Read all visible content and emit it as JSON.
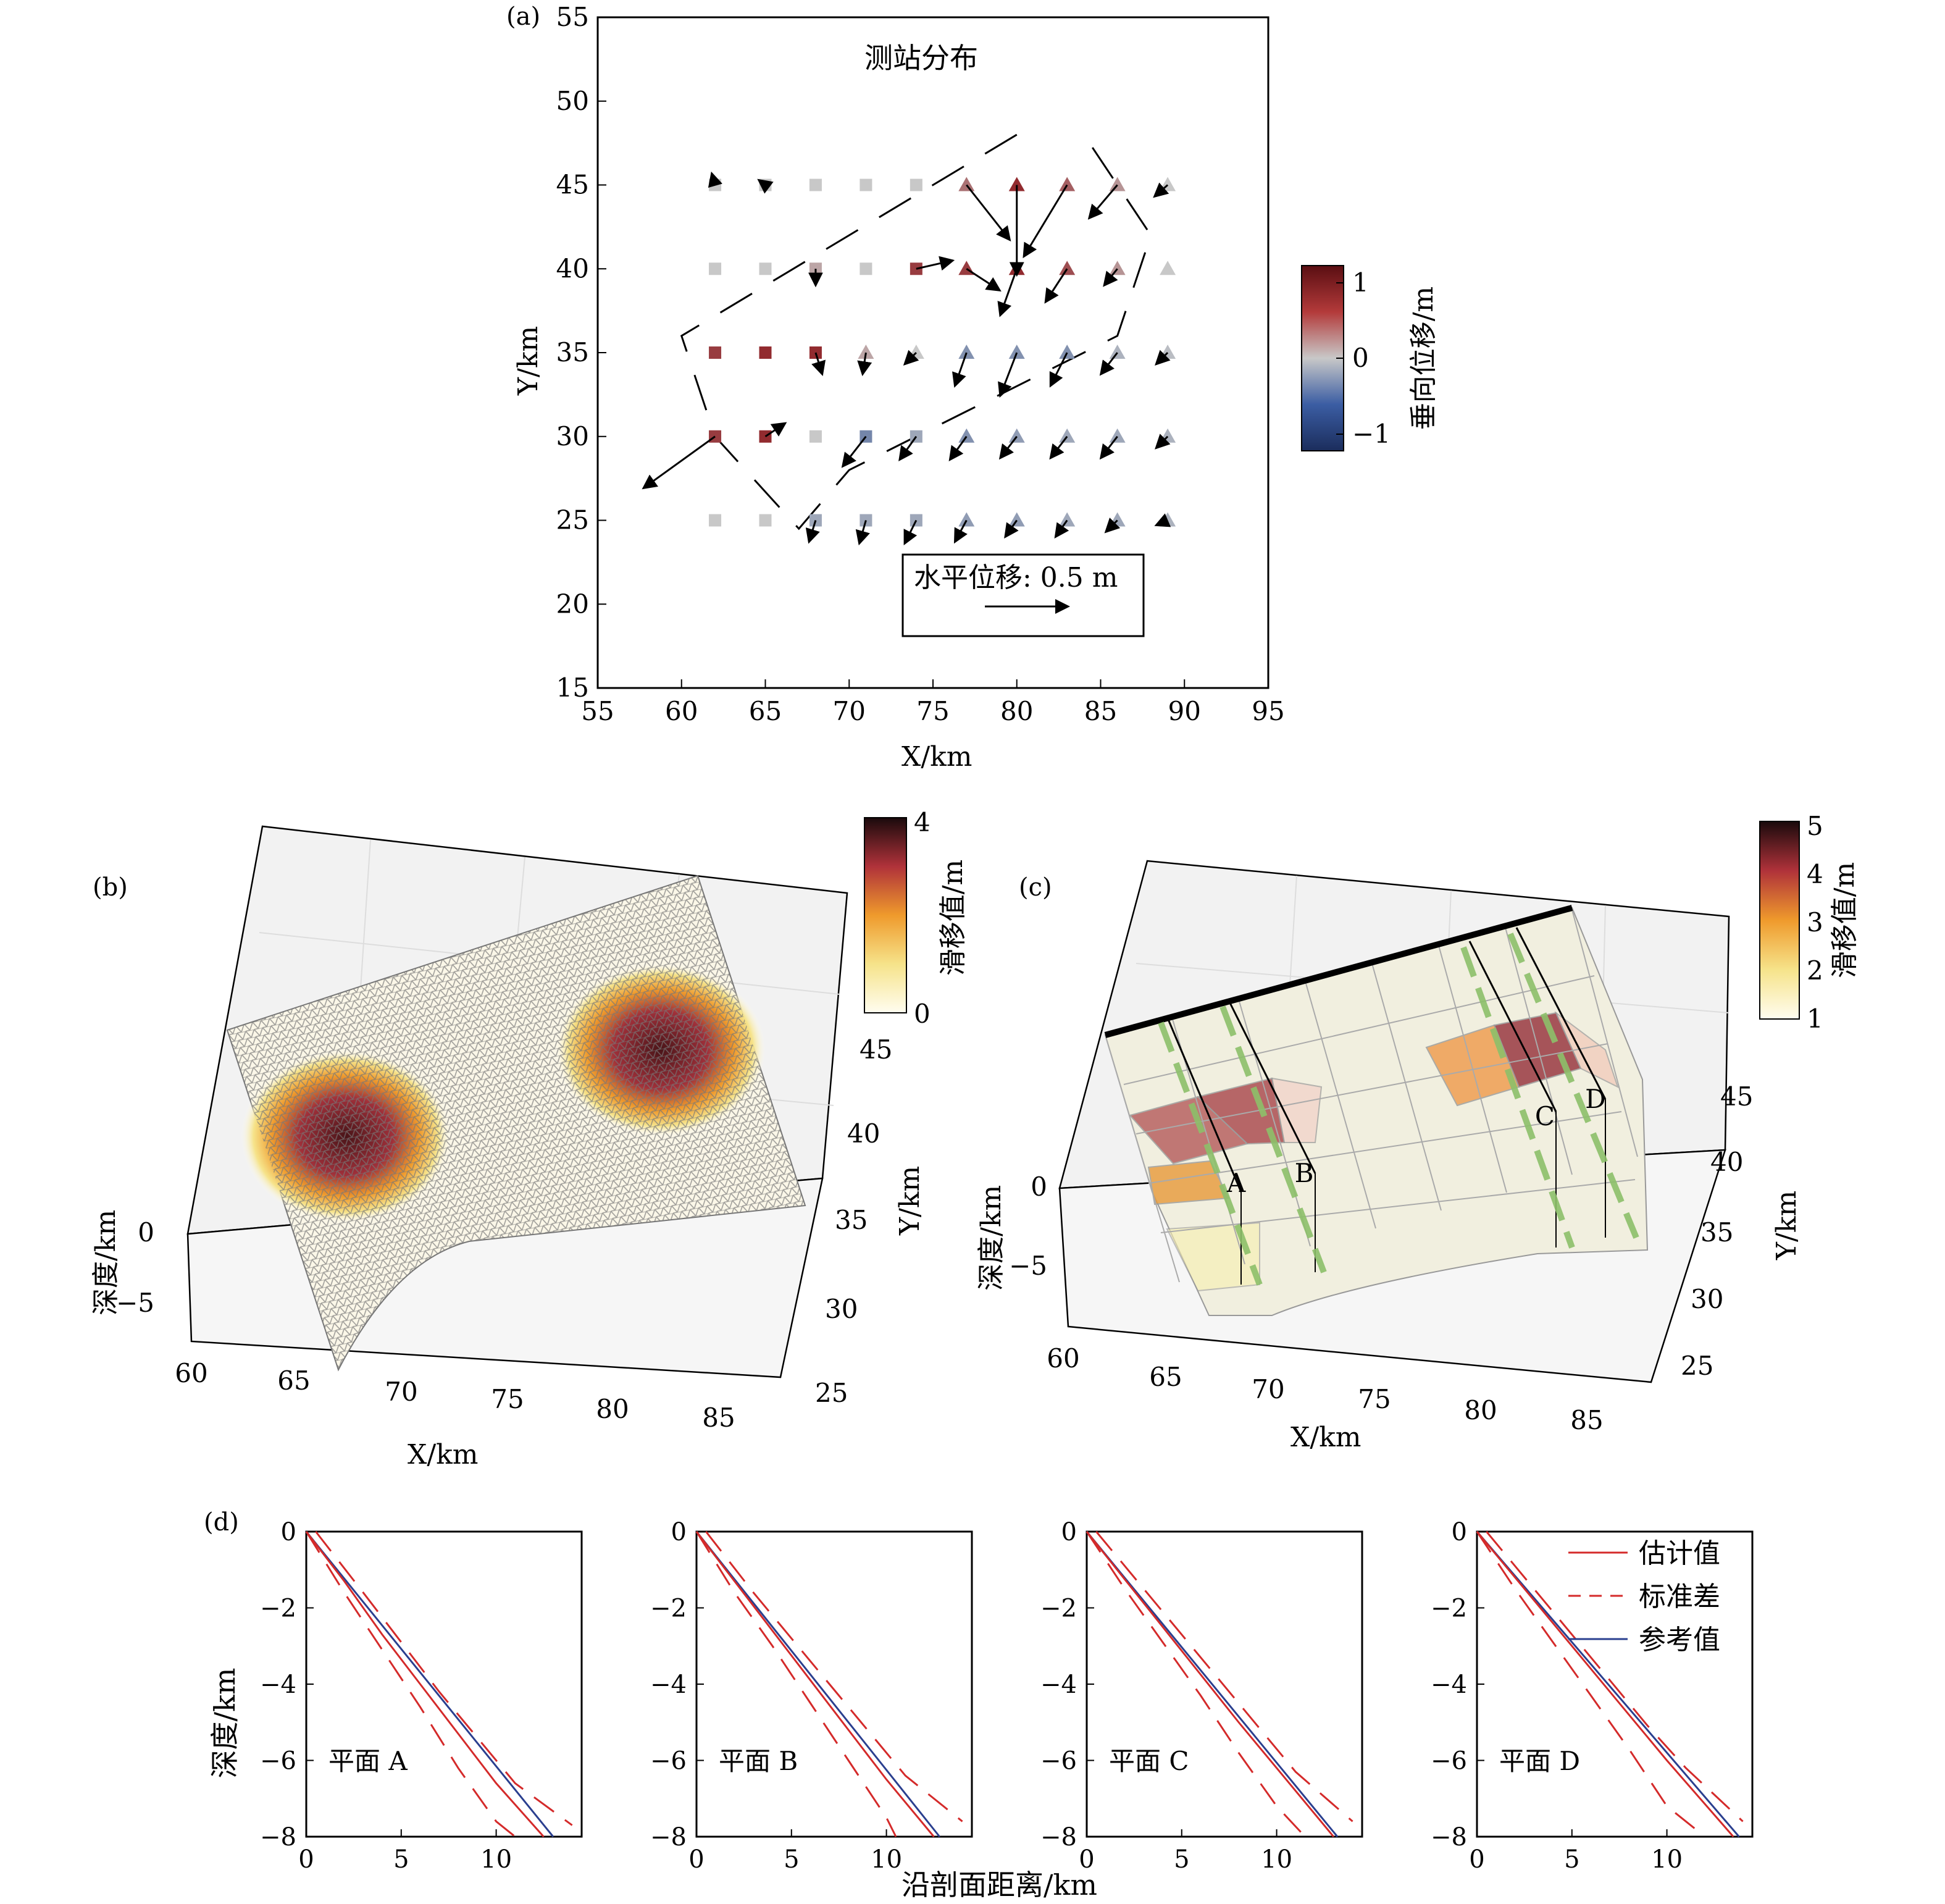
{
  "panels": {
    "a": {
      "tag": "(a)",
      "title": "测站分布",
      "xlabel": "X/km",
      "ylabel": "Y/km",
      "scale_label": "水平位移: 0.5 m",
      "colorbar": {
        "label": "垂向位移/m",
        "ticks": [
          "1",
          "0",
          "−1"
        ],
        "range": [
          -1.2,
          1.2
        ]
      }
    },
    "b": {
      "tag": "(b)",
      "xlabel": "X/km",
      "ylabel": "Y/km",
      "zlabel": "深度/km",
      "xticks": [
        "60",
        "65",
        "70",
        "75",
        "80",
        "85"
      ],
      "yticks": [
        "25",
        "30",
        "35",
        "40",
        "45"
      ],
      "zticks": [
        "0",
        "−5"
      ],
      "colorbar": {
        "label": "滑移值/m",
        "ticks": [
          "4",
          "0"
        ],
        "range": [
          0,
          4
        ]
      }
    },
    "c": {
      "tag": "(c)",
      "xlabel": "X/km",
      "ylabel": "Y/km",
      "zlabel": "深度/km",
      "xticks": [
        "60",
        "65",
        "70",
        "75",
        "80",
        "85"
      ],
      "yticks": [
        "25",
        "30",
        "35",
        "40",
        "45"
      ],
      "zticks": [
        "0",
        "−5"
      ],
      "plane_labels": [
        "A",
        "B",
        "C",
        "D"
      ],
      "colorbar": {
        "label": "滑移值/m",
        "ticks": [
          "5",
          "4",
          "3",
          "2",
          "1"
        ],
        "range": [
          1,
          5
        ]
      }
    },
    "d": {
      "tag": "(d)",
      "xlabel": "沿剖面距离/km",
      "ylabel": "深度/km",
      "legend": [
        "估计值",
        "标准差",
        "参考值"
      ]
    }
  },
  "colors": {
    "estimate": "#d42a2a",
    "reference": "#2a3f8f",
    "axis": "#000000"
  },
  "chart_data": [
    {
      "type": "scatter",
      "panel": "a",
      "title": "测站分布",
      "xlabel": "X/km",
      "ylabel": "Y/km",
      "xlim": [
        55,
        95
      ],
      "ylim": [
        15,
        55
      ],
      "xticks": [
        55,
        60,
        65,
        70,
        75,
        80,
        85,
        90,
        95
      ],
      "yticks": [
        15,
        20,
        25,
        30,
        35,
        40,
        45,
        50,
        55
      ],
      "scale_vector_m": 0.5,
      "fault_trace": [
        [
          80,
          48
        ],
        [
          60,
          36
        ],
        [
          62,
          30
        ],
        [
          67,
          24.5
        ],
        [
          70,
          28
        ],
        [
          77,
          31.5
        ],
        [
          86,
          36
        ],
        [
          88,
          42
        ],
        [
          84,
          48
        ]
      ],
      "stations": [
        {
          "x": 62,
          "y": 45,
          "type": "square",
          "u": -0.02,
          "v": 0.07,
          "up": 0.0
        },
        {
          "x": 65,
          "y": 45,
          "type": "square",
          "u": -0.04,
          "v": 0.03,
          "up": 0.0
        },
        {
          "x": 68,
          "y": 45,
          "type": "square",
          "u": 0.0,
          "v": 0.0,
          "up": 0.0
        },
        {
          "x": 71,
          "y": 45,
          "type": "square",
          "u": 0.0,
          "v": 0.0,
          "up": 0.0
        },
        {
          "x": 74,
          "y": 45,
          "type": "square",
          "u": 0.0,
          "v": 0.0,
          "up": 0.0
        },
        {
          "x": 77,
          "y": 45,
          "type": "triangle",
          "u": 0.26,
          "v": -0.33,
          "up": 0.5
        },
        {
          "x": 80,
          "y": 45,
          "type": "triangle",
          "u": 0.0,
          "v": -0.54,
          "up": 0.9
        },
        {
          "x": 83,
          "y": 45,
          "type": "triangle",
          "u": -0.26,
          "v": -0.43,
          "up": 0.6
        },
        {
          "x": 86,
          "y": 45,
          "type": "triangle",
          "u": -0.17,
          "v": -0.2,
          "up": 0.3
        },
        {
          "x": 89,
          "y": 45,
          "type": "triangle",
          "u": -0.08,
          "v": -0.07,
          "up": 0.0
        },
        {
          "x": 62,
          "y": 40,
          "type": "square",
          "u": 0.0,
          "v": 0.0,
          "up": 0.0
        },
        {
          "x": 65,
          "y": 40,
          "type": "square",
          "u": 0.0,
          "v": 0.0,
          "up": 0.0
        },
        {
          "x": 68,
          "y": 40,
          "type": "square",
          "u": 0.0,
          "v": -0.1,
          "up": 0.2
        },
        {
          "x": 71,
          "y": 40,
          "type": "square",
          "u": 0.0,
          "v": 0.0,
          "up": 0.0
        },
        {
          "x": 74,
          "y": 40,
          "type": "square",
          "u": 0.22,
          "v": 0.05,
          "up": 0.8
        },
        {
          "x": 77,
          "y": 40,
          "type": "triangle",
          "u": 0.2,
          "v": -0.13,
          "up": 0.8
        },
        {
          "x": 80,
          "y": 40,
          "type": "triangle",
          "u": -0.1,
          "v": -0.28,
          "up": 0.9
        },
        {
          "x": 83,
          "y": 40,
          "type": "triangle",
          "u": -0.13,
          "v": -0.2,
          "up": 0.7
        },
        {
          "x": 86,
          "y": 40,
          "type": "triangle",
          "u": -0.08,
          "v": -0.1,
          "up": 0.3
        },
        {
          "x": 89,
          "y": 40,
          "type": "triangle",
          "u": 0.0,
          "v": 0.0,
          "up": 0.0
        },
        {
          "x": 62,
          "y": 35,
          "type": "square",
          "u": 0.0,
          "v": 0.0,
          "up": 0.8
        },
        {
          "x": 65,
          "y": 35,
          "type": "square",
          "u": 0.0,
          "v": 0.0,
          "up": 0.9
        },
        {
          "x": 68,
          "y": 35,
          "type": "square",
          "u": 0.04,
          "v": -0.13,
          "up": 0.9
        },
        {
          "x": 71,
          "y": 35,
          "type": "triangle",
          "u": -0.02,
          "v": -0.13,
          "up": 0.2
        },
        {
          "x": 74,
          "y": 35,
          "type": "triangle",
          "u": -0.07,
          "v": -0.07,
          "up": 0.0
        },
        {
          "x": 77,
          "y": 35,
          "type": "triangle",
          "u": -0.07,
          "v": -0.2,
          "up": -0.5
        },
        {
          "x": 80,
          "y": 35,
          "type": "triangle",
          "u": -0.1,
          "v": -0.26,
          "up": -0.5
        },
        {
          "x": 83,
          "y": 35,
          "type": "triangle",
          "u": -0.1,
          "v": -0.2,
          "up": -0.5
        },
        {
          "x": 86,
          "y": 35,
          "type": "triangle",
          "u": -0.1,
          "v": -0.13,
          "up": -0.2
        },
        {
          "x": 89,
          "y": 35,
          "type": "triangle",
          "u": -0.07,
          "v": -0.07,
          "up": -0.1
        },
        {
          "x": 62,
          "y": 30,
          "type": "square",
          "u": -0.43,
          "v": -0.31,
          "up": 0.8
        },
        {
          "x": 65,
          "y": 30,
          "type": "square",
          "u": 0.12,
          "v": 0.08,
          "up": 0.9
        },
        {
          "x": 68,
          "y": 30,
          "type": "square",
          "u": 0.0,
          "v": 0.0,
          "up": 0.0
        },
        {
          "x": 71,
          "y": 30,
          "type": "square",
          "u": -0.14,
          "v": -0.18,
          "up": -0.6
        },
        {
          "x": 74,
          "y": 30,
          "type": "square",
          "u": -0.1,
          "v": -0.14,
          "up": -0.3
        },
        {
          "x": 77,
          "y": 30,
          "type": "triangle",
          "u": -0.1,
          "v": -0.14,
          "up": -0.5
        },
        {
          "x": 80,
          "y": 30,
          "type": "triangle",
          "u": -0.1,
          "v": -0.13,
          "up": -0.4
        },
        {
          "x": 83,
          "y": 30,
          "type": "triangle",
          "u": -0.1,
          "v": -0.13,
          "up": -0.3
        },
        {
          "x": 86,
          "y": 30,
          "type": "triangle",
          "u": -0.1,
          "v": -0.13,
          "up": -0.3
        },
        {
          "x": 89,
          "y": 30,
          "type": "triangle",
          "u": -0.07,
          "v": -0.07,
          "up": -0.2
        },
        {
          "x": 62,
          "y": 25,
          "type": "square",
          "u": 0.0,
          "v": 0.0,
          "up": 0.0
        },
        {
          "x": 65,
          "y": 25,
          "type": "square",
          "u": 0.0,
          "v": 0.0,
          "up": 0.0
        },
        {
          "x": 68,
          "y": 25,
          "type": "square",
          "u": -0.04,
          "v": -0.13,
          "up": -0.3
        },
        {
          "x": 71,
          "y": 25,
          "type": "square",
          "u": -0.04,
          "v": -0.14,
          "up": -0.3
        },
        {
          "x": 74,
          "y": 25,
          "type": "square",
          "u": -0.07,
          "v": -0.14,
          "up": -0.3
        },
        {
          "x": 77,
          "y": 25,
          "type": "triangle",
          "u": -0.07,
          "v": -0.13,
          "up": -0.4
        },
        {
          "x": 80,
          "y": 25,
          "type": "triangle",
          "u": -0.07,
          "v": -0.1,
          "up": -0.4
        },
        {
          "x": 83,
          "y": 25,
          "type": "triangle",
          "u": -0.07,
          "v": -0.1,
          "up": -0.3
        },
        {
          "x": 86,
          "y": 25,
          "type": "triangle",
          "u": -0.07,
          "v": -0.07,
          "up": -0.3
        },
        {
          "x": 89,
          "y": 25,
          "type": "triangle",
          "u": -0.07,
          "v": -0.03,
          "up": -0.2
        }
      ]
    },
    {
      "type": "heatmap",
      "panel": "b",
      "description_units": "3D fault slip distribution",
      "xlabel": "X/km",
      "ylabel": "Y/km",
      "zlabel": "深度/km",
      "xlim": [
        60,
        87
      ],
      "ylim": [
        24,
        48
      ],
      "zlim": [
        -8,
        0
      ],
      "colorbar_range": [
        0,
        4
      ],
      "slip_patches": [
        {
          "center_x": 66,
          "center_y": 34,
          "peak_slip": 4
        },
        {
          "center_x": 80,
          "center_y": 42,
          "peak_slip": 4
        }
      ]
    },
    {
      "type": "heatmap",
      "panel": "c",
      "xlabel": "X/km",
      "ylabel": "Y/km",
      "zlabel": "深度/km",
      "xlim": [
        60,
        87
      ],
      "ylim": [
        24,
        48
      ],
      "zlim": [
        -8,
        0
      ],
      "colorbar_range": [
        1,
        5
      ],
      "profiles": [
        "A",
        "B",
        "C",
        "D"
      ]
    },
    {
      "type": "line",
      "panel": "d",
      "xlabel": "沿剖面距离/km",
      "ylabel": "深度/km",
      "xlim": [
        0,
        14.5
      ],
      "ylim": [
        -8,
        0
      ],
      "xticks": [
        0,
        5,
        10
      ],
      "yticks": [
        0,
        -2,
        -4,
        -6,
        -8
      ],
      "subplots": [
        {
          "label": "平面 A",
          "estimate": [
            [
              0,
              0
            ],
            [
              2,
              -1.3
            ],
            [
              4,
              -2.7
            ],
            [
              6,
              -4.0
            ],
            [
              8,
              -5.3
            ],
            [
              10,
              -6.6
            ],
            [
              12.5,
              -8
            ]
          ],
          "std_upper": [
            [
              0.5,
              0
            ],
            [
              3,
              -1.6
            ],
            [
              5,
              -2.9
            ],
            [
              7,
              -4.2
            ],
            [
              9,
              -5.4
            ],
            [
              11,
              -6.6
            ],
            [
              14,
              -7.7
            ]
          ],
          "std_lower": [
            [
              0,
              0
            ],
            [
              2,
              -1.6
            ],
            [
              4,
              -3.1
            ],
            [
              6,
              -4.6
            ],
            [
              8,
              -6.2
            ],
            [
              10,
              -7.6
            ],
            [
              11,
              -8
            ]
          ],
          "reference": [
            [
              0,
              0
            ],
            [
              13,
              -8
            ]
          ]
        },
        {
          "label": "平面 B",
          "estimate": [
            [
              0,
              0
            ],
            [
              2,
              -1.3
            ],
            [
              4,
              -2.6
            ],
            [
              6,
              -3.9
            ],
            [
              8,
              -5.2
            ],
            [
              10,
              -6.5
            ],
            [
              12.5,
              -8
            ]
          ],
          "std_upper": [
            [
              0.5,
              0
            ],
            [
              3,
              -1.6
            ],
            [
              5,
              -2.8
            ],
            [
              7,
              -4.0
            ],
            [
              9,
              -5.2
            ],
            [
              11,
              -6.4
            ],
            [
              14,
              -7.6
            ]
          ],
          "std_lower": [
            [
              0,
              0
            ],
            [
              2,
              -1.6
            ],
            [
              4,
              -3.0
            ],
            [
              6,
              -4.5
            ],
            [
              8,
              -6.0
            ],
            [
              10,
              -7.5
            ],
            [
              10.5,
              -8
            ]
          ],
          "reference": [
            [
              0,
              0
            ],
            [
              12.8,
              -8
            ]
          ]
        },
        {
          "label": "平面 C",
          "estimate": [
            [
              0,
              0
            ],
            [
              2,
              -1.25
            ],
            [
              4,
              -2.5
            ],
            [
              6,
              -3.75
            ],
            [
              8,
              -5.0
            ],
            [
              10,
              -6.2
            ],
            [
              13,
              -8
            ]
          ],
          "std_upper": [
            [
              0.5,
              0
            ],
            [
              3,
              -1.5
            ],
            [
              5,
              -2.7
            ],
            [
              7,
              -3.9
            ],
            [
              9,
              -5.1
            ],
            [
              11,
              -6.3
            ],
            [
              14,
              -7.6
            ]
          ],
          "std_lower": [
            [
              0,
              0
            ],
            [
              2,
              -1.5
            ],
            [
              4,
              -2.9
            ],
            [
              6,
              -4.3
            ],
            [
              8,
              -5.8
            ],
            [
              10,
              -7.2
            ],
            [
              11.5,
              -8
            ]
          ],
          "reference": [
            [
              0,
              0
            ],
            [
              13.2,
              -8
            ]
          ]
        },
        {
          "label": "平面 D",
          "estimate": [
            [
              0,
              0
            ],
            [
              2,
              -1.2
            ],
            [
              4,
              -2.4
            ],
            [
              6,
              -3.6
            ],
            [
              8,
              -4.8
            ],
            [
              10,
              -6.0
            ],
            [
              13.5,
              -8
            ]
          ],
          "std_upper": [
            [
              0.5,
              0
            ],
            [
              3,
              -1.5
            ],
            [
              5,
              -2.7
            ],
            [
              7,
              -3.9
            ],
            [
              9,
              -5.1
            ],
            [
              11,
              -6.2
            ],
            [
              14,
              -7.6
            ]
          ],
          "std_lower": [
            [
              0,
              0
            ],
            [
              2,
              -1.5
            ],
            [
              4,
              -2.9
            ],
            [
              6,
              -4.3
            ],
            [
              8,
              -5.7
            ],
            [
              10,
              -7.2
            ],
            [
              12,
              -8
            ]
          ],
          "reference": [
            [
              0,
              0
            ],
            [
              13.8,
              -8
            ]
          ]
        }
      ]
    }
  ]
}
